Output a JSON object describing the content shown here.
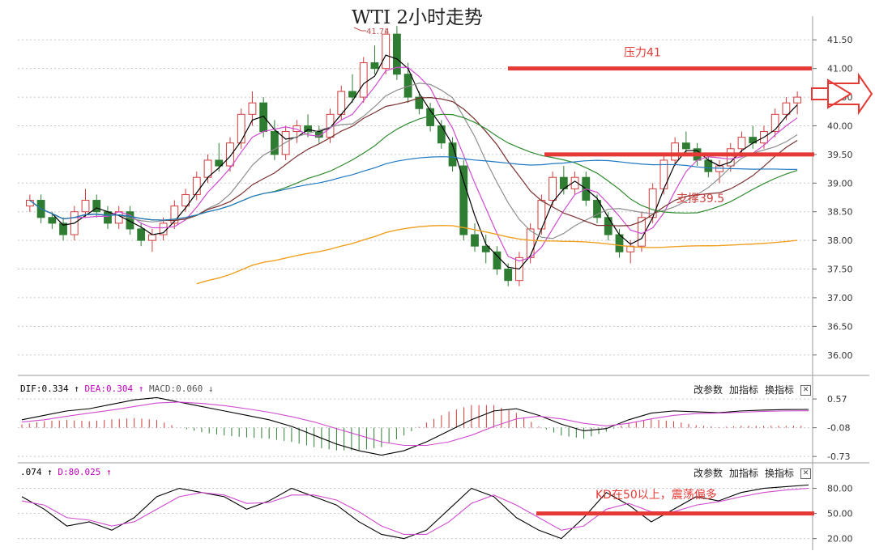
{
  "title": "WTI 2小时走势",
  "colors": {
    "up": "#d23b3b",
    "down": "#2e7d32",
    "annotation": "#e53935",
    "ma1": "#000000",
    "ma2": "#d04ad0",
    "ma3": "#8e8e8e",
    "ma4": "#7a3030",
    "ma5": "#2e8b2e",
    "ma6": "#1f78c4",
    "ma7": "#f0a020",
    "grid": "#c8c8c8"
  },
  "main_axis": {
    "ticks": [
      "41.50",
      "41.00",
      "40.50",
      "40.00",
      "39.50",
      "39.00",
      "38.50",
      "38.00",
      "37.50",
      "37.00",
      "36.50",
      "36.00"
    ]
  },
  "annotations": {
    "resistance_label": "压力41",
    "support_label": "支撑39.5",
    "kd_note": "KD在50以上，震荡偏多",
    "high_label": "41.74"
  },
  "macd_panel": {
    "dif_label": "DIF:0.334",
    "dea_label": "DEA:0.304",
    "macd_label": "MACD:0.060",
    "ticks": [
      "0.57",
      "-0.08",
      "-0.73"
    ]
  },
  "kd_panel": {
    "k_label": ".074",
    "d_label": "D:80.025",
    "ticks": [
      "80.00",
      "50.00",
      "20.00"
    ]
  },
  "toolbar": {
    "params": "改参数",
    "add_indicator": "加指标",
    "switch_indicator": "换指标",
    "close": "✕"
  },
  "chart_data": [
    {
      "type": "candlestick",
      "title": "WTI 2小时走势",
      "ylim": [
        35.7,
        41.8
      ],
      "resistance": 41.0,
      "support": 39.5,
      "candles": [
        [
          38.6,
          38.8,
          38.5,
          38.7
        ],
        [
          38.7,
          38.8,
          38.3,
          38.4
        ],
        [
          38.4,
          38.5,
          38.2,
          38.3
        ],
        [
          38.3,
          38.4,
          38.0,
          38.1
        ],
        [
          38.1,
          38.6,
          38.0,
          38.5
        ],
        [
          38.5,
          38.9,
          38.4,
          38.7
        ],
        [
          38.7,
          38.8,
          38.4,
          38.5
        ],
        [
          38.5,
          38.6,
          38.2,
          38.3
        ],
        [
          38.3,
          38.6,
          38.2,
          38.5
        ],
        [
          38.5,
          38.6,
          38.1,
          38.2
        ],
        [
          38.2,
          38.3,
          37.9,
          38.0
        ],
        [
          38.0,
          38.2,
          37.8,
          38.1
        ],
        [
          38.1,
          38.4,
          38.0,
          38.3
        ],
        [
          38.3,
          38.7,
          38.2,
          38.6
        ],
        [
          38.6,
          38.9,
          38.5,
          38.8
        ],
        [
          38.8,
          39.2,
          38.7,
          39.1
        ],
        [
          39.1,
          39.5,
          39.0,
          39.4
        ],
        [
          39.4,
          39.7,
          39.2,
          39.3
        ],
        [
          39.3,
          39.8,
          39.2,
          39.7
        ],
        [
          39.7,
          40.3,
          39.6,
          40.2
        ],
        [
          40.2,
          40.6,
          40.0,
          40.4
        ],
        [
          40.4,
          40.5,
          39.8,
          39.9
        ],
        [
          39.9,
          40.1,
          39.4,
          39.5
        ],
        [
          39.5,
          40.0,
          39.4,
          39.9
        ],
        [
          39.9,
          40.1,
          39.7,
          40.0
        ],
        [
          40.0,
          40.2,
          39.8,
          39.9
        ],
        [
          39.9,
          40.0,
          39.7,
          39.8
        ],
        [
          39.8,
          40.3,
          39.7,
          40.2
        ],
        [
          40.2,
          40.7,
          40.1,
          40.6
        ],
        [
          40.6,
          40.9,
          40.4,
          40.5
        ],
        [
          40.5,
          41.2,
          40.4,
          41.1
        ],
        [
          41.1,
          41.4,
          40.9,
          41.0
        ],
        [
          41.0,
          41.7,
          40.9,
          41.6
        ],
        [
          41.6,
          41.74,
          40.8,
          40.9
        ],
        [
          40.9,
          41.1,
          40.4,
          40.5
        ],
        [
          40.5,
          40.6,
          40.2,
          40.3
        ],
        [
          40.3,
          40.4,
          39.9,
          40.0
        ],
        [
          40.0,
          40.1,
          39.6,
          39.7
        ],
        [
          39.7,
          39.8,
          39.2,
          39.3
        ],
        [
          39.3,
          39.4,
          38.0,
          38.1
        ],
        [
          38.1,
          38.3,
          37.8,
          37.9
        ],
        [
          37.9,
          38.1,
          37.6,
          37.8
        ],
        [
          37.8,
          37.9,
          37.4,
          37.5
        ],
        [
          37.5,
          37.6,
          37.2,
          37.3
        ],
        [
          37.3,
          37.8,
          37.2,
          37.7
        ],
        [
          37.7,
          38.3,
          37.6,
          38.2
        ],
        [
          38.2,
          38.8,
          38.1,
          38.7
        ],
        [
          38.7,
          39.2,
          38.6,
          39.1
        ],
        [
          39.1,
          39.3,
          38.8,
          38.9
        ],
        [
          38.9,
          39.2,
          38.8,
          39.1
        ],
        [
          39.1,
          39.2,
          38.6,
          38.7
        ],
        [
          38.7,
          38.8,
          38.3,
          38.4
        ],
        [
          38.4,
          38.5,
          38.0,
          38.1
        ],
        [
          38.1,
          38.2,
          37.7,
          37.8
        ],
        [
          37.8,
          38.0,
          37.6,
          37.9
        ],
        [
          37.9,
          38.5,
          37.8,
          38.4
        ],
        [
          38.4,
          39.0,
          38.3,
          38.9
        ],
        [
          38.9,
          39.5,
          38.8,
          39.4
        ],
        [
          39.4,
          39.8,
          39.3,
          39.7
        ],
        [
          39.7,
          39.9,
          39.5,
          39.6
        ],
        [
          39.6,
          39.7,
          39.3,
          39.4
        ],
        [
          39.4,
          39.5,
          39.1,
          39.2
        ],
        [
          39.2,
          39.4,
          39.0,
          39.3
        ],
        [
          39.3,
          39.7,
          39.2,
          39.6
        ],
        [
          39.6,
          39.9,
          39.5,
          39.8
        ],
        [
          39.8,
          40.0,
          39.6,
          39.7
        ],
        [
          39.7,
          40.0,
          39.6,
          39.9
        ],
        [
          39.9,
          40.3,
          39.8,
          40.2
        ],
        [
          40.2,
          40.5,
          40.1,
          40.4
        ],
        [
          40.4,
          40.6,
          40.2,
          40.5
        ]
      ]
    },
    {
      "type": "line",
      "title": "MACD",
      "ylim": [
        -0.8,
        0.7
      ],
      "series": [
        {
          "name": "DIF",
          "values": [
            0.1,
            0.2,
            0.3,
            0.35,
            0.45,
            0.55,
            0.6,
            0.5,
            0.4,
            0.3,
            0.2,
            0.1,
            -0.05,
            -0.25,
            -0.45,
            -0.6,
            -0.7,
            -0.6,
            -0.4,
            -0.15,
            0.1,
            0.3,
            0.35,
            0.2,
            0.0,
            -0.15,
            -0.1,
            0.1,
            0.25,
            0.3,
            0.28,
            0.26,
            0.3,
            0.32,
            0.33,
            0.334
          ]
        },
        {
          "name": "DEA",
          "values": [
            0.05,
            0.1,
            0.18,
            0.25,
            0.32,
            0.4,
            0.48,
            0.5,
            0.47,
            0.42,
            0.35,
            0.27,
            0.17,
            0.05,
            -0.1,
            -0.25,
            -0.4,
            -0.48,
            -0.48,
            -0.4,
            -0.25,
            -0.05,
            0.12,
            0.18,
            0.12,
            0.02,
            -0.04,
            0.02,
            0.12,
            0.2,
            0.24,
            0.25,
            0.27,
            0.29,
            0.3,
            0.304
          ]
        }
      ]
    },
    {
      "type": "line",
      "title": "KD",
      "ylim": [
        10,
        95
      ],
      "series": [
        {
          "name": "K",
          "values": [
            70,
            55,
            35,
            40,
            30,
            45,
            70,
            80,
            75,
            70,
            55,
            65,
            80,
            70,
            60,
            40,
            25,
            20,
            30,
            55,
            80,
            70,
            45,
            30,
            20,
            45,
            75,
            60,
            40,
            55,
            70,
            65,
            75,
            80,
            82,
            84
          ]
        },
        {
          "name": "D",
          "values": [
            65,
            60,
            45,
            42,
            35,
            40,
            55,
            70,
            75,
            72,
            62,
            63,
            72,
            72,
            66,
            52,
            35,
            25,
            25,
            40,
            62,
            72,
            60,
            45,
            30,
            35,
            55,
            62,
            52,
            52,
            60,
            64,
            70,
            75,
            78,
            80.025
          ]
        }
      ]
    }
  ]
}
